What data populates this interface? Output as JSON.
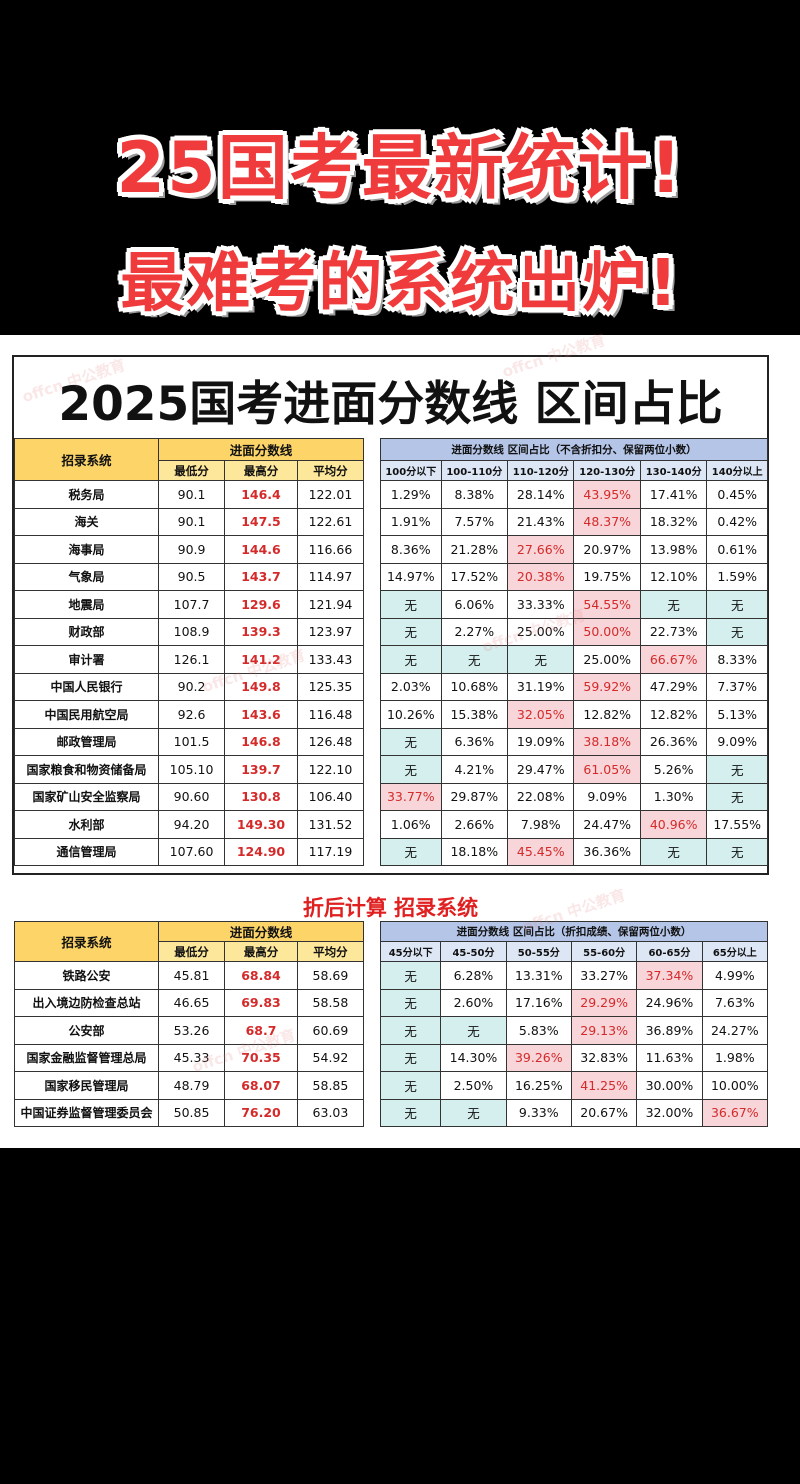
{
  "headline": {
    "line1": "25国考最新统计!",
    "line2": "最难考的系统出炉!"
  },
  "main_title": "2025国考进面分数线 区间占比",
  "section2_title": "折后计算 招录系统",
  "watermark": "offcn 中公教育",
  "table1": {
    "sys_header": "招录系统",
    "group_header": "进面分数线",
    "sub_headers": [
      "最低分",
      "最高分",
      "平均分"
    ],
    "dist_header": "进面分数线 区间占比（不含折扣分、保留两位小数）",
    "dist_sub_headers": [
      "100分以下",
      "100-110分",
      "110-120分",
      "120-130分",
      "130-140分",
      "140分以上"
    ],
    "rows": [
      {
        "name": "税务局",
        "min": "90.1",
        "max": "146.4",
        "avg": "122.01",
        "dist": [
          "1.29%",
          "8.38%",
          "28.14%",
          "43.95%",
          "17.41%",
          "0.45%"
        ],
        "pink": [
          3
        ]
      },
      {
        "name": "海关",
        "min": "90.1",
        "max": "147.5",
        "avg": "122.61",
        "dist": [
          "1.91%",
          "7.57%",
          "21.43%",
          "48.37%",
          "18.32%",
          "0.42%"
        ],
        "pink": [
          3
        ]
      },
      {
        "name": "海事局",
        "min": "90.9",
        "max": "144.6",
        "avg": "116.66",
        "dist": [
          "8.36%",
          "21.28%",
          "27.66%",
          "20.97%",
          "13.98%",
          "0.61%"
        ],
        "pink": [
          2
        ]
      },
      {
        "name": "气象局",
        "min": "90.5",
        "max": "143.7",
        "avg": "114.97",
        "dist": [
          "14.97%",
          "17.52%",
          "20.38%",
          "19.75%",
          "12.10%",
          "1.59%"
        ],
        "pink": [
          2
        ]
      },
      {
        "name": "地震局",
        "min": "107.7",
        "max": "129.6",
        "avg": "121.94",
        "dist": [
          "无",
          "6.06%",
          "33.33%",
          "54.55%",
          "无",
          "无"
        ],
        "pink": [
          3
        ]
      },
      {
        "name": "财政部",
        "min": "108.9",
        "max": "139.3",
        "avg": "123.97",
        "dist": [
          "无",
          "2.27%",
          "25.00%",
          "50.00%",
          "22.73%",
          "无"
        ],
        "pink": [
          3
        ]
      },
      {
        "name": "审计署",
        "min": "126.1",
        "max": "141.2",
        "avg": "133.43",
        "dist": [
          "无",
          "无",
          "无",
          "25.00%",
          "66.67%",
          "8.33%"
        ],
        "pink": [
          4
        ]
      },
      {
        "name": "中国人民银行",
        "min": "90.2",
        "max": "149.8",
        "avg": "125.35",
        "dist": [
          "2.03%",
          "10.68%",
          "31.19%",
          "59.92%",
          "47.29%",
          "7.37%"
        ],
        "pink": [
          3
        ]
      },
      {
        "name": "中国民用航空局",
        "min": "92.6",
        "max": "143.6",
        "avg": "116.48",
        "dist": [
          "10.26%",
          "15.38%",
          "32.05%",
          "12.82%",
          "12.82%",
          "5.13%"
        ],
        "pink": [
          2
        ]
      },
      {
        "name": "邮政管理局",
        "min": "101.5",
        "max": "146.8",
        "avg": "126.48",
        "dist": [
          "无",
          "6.36%",
          "19.09%",
          "38.18%",
          "26.36%",
          "9.09%"
        ],
        "pink": [
          3
        ]
      },
      {
        "name": "国家粮食和物资储备局",
        "min": "105.10",
        "max": "139.7",
        "avg": "122.10",
        "dist": [
          "无",
          "4.21%",
          "29.47%",
          "61.05%",
          "5.26%",
          "无"
        ],
        "pink": [
          3
        ]
      },
      {
        "name": "国家矿山安全监察局",
        "min": "90.60",
        "max": "130.8",
        "avg": "106.40",
        "dist": [
          "33.77%",
          "29.87%",
          "22.08%",
          "9.09%",
          "1.30%",
          "无"
        ],
        "pink": [
          0
        ]
      },
      {
        "name": "水利部",
        "min": "94.20",
        "max": "149.30",
        "avg": "131.52",
        "dist": [
          "1.06%",
          "2.66%",
          "7.98%",
          "24.47%",
          "40.96%",
          "17.55%"
        ],
        "pink": [
          4
        ]
      },
      {
        "name": "通信管理局",
        "min": "107.60",
        "max": "124.90",
        "avg": "117.19",
        "dist": [
          "无",
          "18.18%",
          "45.45%",
          "36.36%",
          "无",
          "无"
        ],
        "pink": [
          2
        ]
      }
    ]
  },
  "table2": {
    "sys_header": "招录系统",
    "group_header": "进面分数线",
    "sub_headers": [
      "最低分",
      "最高分",
      "平均分"
    ],
    "dist_header": "进面分数线 区间占比（折扣成绩、保留两位小数）",
    "dist_sub_headers": [
      "45分以下",
      "45-50分",
      "50-55分",
      "55-60分",
      "60-65分",
      "65分以上"
    ],
    "rows": [
      {
        "name": "铁路公安",
        "min": "45.81",
        "max": "68.84",
        "avg": "58.69",
        "dist": [
          "无",
          "6.28%",
          "13.31%",
          "33.27%",
          "37.34%",
          "4.99%"
        ],
        "pink": [
          4
        ]
      },
      {
        "name": "出入境边防检查总站",
        "min": "46.65",
        "max": "69.83",
        "avg": "58.58",
        "dist": [
          "无",
          "2.60%",
          "17.16%",
          "29.29%",
          "24.96%",
          "7.63%"
        ],
        "pink": [
          3
        ]
      },
      {
        "name": "公安部",
        "min": "53.26",
        "max": "68.7",
        "avg": "60.69",
        "dist": [
          "无",
          "无",
          "5.83%",
          "29.13%",
          "36.89%",
          "24.27%"
        ],
        "pink": [
          3
        ]
      },
      {
        "name": "国家金融监督管理总局",
        "min": "45.33",
        "max": "70.35",
        "avg": "54.92",
        "dist": [
          "无",
          "14.30%",
          "39.26%",
          "32.83%",
          "11.63%",
          "1.98%"
        ],
        "pink": [
          2
        ]
      },
      {
        "name": "国家移民管理局",
        "min": "48.79",
        "max": "68.07",
        "avg": "58.85",
        "dist": [
          "无",
          "2.50%",
          "16.25%",
          "41.25%",
          "30.00%",
          "10.00%"
        ],
        "pink": [
          3
        ]
      },
      {
        "name": "中国证券监督管理委员会",
        "min": "50.85",
        "max": "76.20",
        "avg": "63.03",
        "dist": [
          "无",
          "无",
          "9.33%",
          "20.67%",
          "32.00%",
          "36.67%"
        ],
        "pink": [
          5
        ]
      }
    ]
  }
}
